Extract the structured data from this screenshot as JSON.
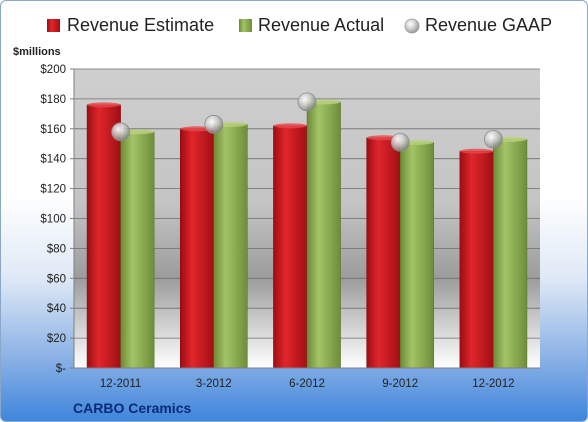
{
  "chart_data": {
    "type": "bar",
    "company": "CARBO Ceramics",
    "unit_label": "$millions",
    "categories": [
      "12-2011",
      "3-2012",
      "6-2012",
      "9-2012",
      "12-2012"
    ],
    "series": [
      {
        "name": "Revenue Estimate",
        "kind": "bar",
        "color": "#c8161d",
        "values": [
          176,
          160,
          162,
          154,
          145
        ]
      },
      {
        "name": "Revenue Actual",
        "kind": "bar",
        "color": "#8dae52",
        "values": [
          158,
          163,
          178,
          151,
          153
        ]
      },
      {
        "name": "Revenue GAAP",
        "kind": "marker",
        "color": "#b4b4b4",
        "values": [
          158,
          163,
          178,
          151,
          153
        ]
      }
    ],
    "ylim": [
      0,
      200
    ],
    "y_ticks": [
      0,
      20,
      40,
      60,
      80,
      100,
      120,
      140,
      160,
      180,
      200
    ],
    "y_tick_labels": [
      "$-",
      "$20",
      "$40",
      "$60",
      "$80",
      "$100",
      "$120",
      "$140",
      "$160",
      "$180",
      "$200"
    ],
    "legend_position": "top",
    "grid": true
  }
}
